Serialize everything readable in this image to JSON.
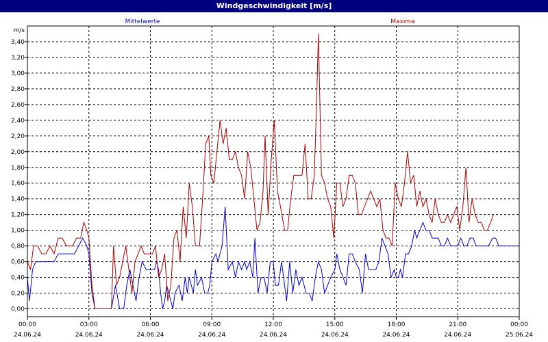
{
  "window": {
    "title": "Windgeschwindigkeit [m/s]"
  },
  "chart_data": {
    "type": "line",
    "title": "Windgeschwindigkeit [m/s]",
    "ylabel": "m/s",
    "ylim": [
      -0.1,
      3.6
    ],
    "grid": true,
    "legend_placement": "top",
    "y_ticks": [
      "0,00",
      "0,20",
      "0,40",
      "0,60",
      "0,80",
      "1,00",
      "1,20",
      "1,40",
      "1,60",
      "1,80",
      "2,00",
      "2,20",
      "2,40",
      "2,60",
      "2,80",
      "3,00",
      "3,20",
      "3,40"
    ],
    "x_ticks": [
      {
        "time": "00:00",
        "date": "24.06.24"
      },
      {
        "time": "03:00",
        "date": "24.06.24"
      },
      {
        "time": "06:00",
        "date": "24.06.24"
      },
      {
        "time": "09:00",
        "date": "24.06.24"
      },
      {
        "time": "12:00",
        "date": "24.06.24"
      },
      {
        "time": "15:00",
        "date": "24.06.24"
      },
      {
        "time": "18:00",
        "date": "24.06.24"
      },
      {
        "time": "21:00",
        "date": "24.06.24"
      },
      {
        "time": "00:00",
        "date": "25.06.24"
      }
    ],
    "series": [
      {
        "name": "Mittelwerte",
        "color": "#0000cc",
        "points": [
          [
            0.0,
            0.4
          ],
          [
            0.1,
            0.1
          ],
          [
            0.25,
            0.5
          ],
          [
            0.4,
            0.6
          ],
          [
            0.7,
            0.6
          ],
          [
            1.0,
            0.6
          ],
          [
            1.3,
            0.6
          ],
          [
            1.5,
            0.7
          ],
          [
            1.8,
            0.7
          ],
          [
            2.1,
            0.7
          ],
          [
            2.3,
            0.7
          ],
          [
            2.5,
            0.8
          ],
          [
            2.7,
            0.9
          ],
          [
            2.9,
            0.8
          ],
          [
            3.0,
            0.7
          ],
          [
            3.15,
            0.2
          ],
          [
            3.3,
            0.0
          ],
          [
            3.6,
            0.0
          ],
          [
            3.9,
            0.0
          ],
          [
            4.1,
            0.0
          ],
          [
            4.3,
            0.3
          ],
          [
            4.5,
            0.0
          ],
          [
            4.7,
            0.0
          ],
          [
            4.85,
            0.3
          ],
          [
            5.0,
            0.5
          ],
          [
            5.15,
            0.3
          ],
          [
            5.3,
            0.1
          ],
          [
            5.45,
            0.4
          ],
          [
            5.6,
            0.6
          ],
          [
            5.8,
            0.5
          ],
          [
            6.0,
            0.5
          ],
          [
            6.2,
            0.5
          ],
          [
            6.3,
            0.6
          ],
          [
            6.4,
            0.5
          ],
          [
            6.5,
            0.2
          ],
          [
            6.6,
            0.0
          ],
          [
            6.7,
            0.1
          ],
          [
            6.8,
            0.3
          ],
          [
            6.9,
            0.2
          ],
          [
            7.0,
            0.1
          ],
          [
            7.1,
            0.0
          ],
          [
            7.2,
            0.2
          ],
          [
            7.4,
            0.3
          ],
          [
            7.55,
            0.1
          ],
          [
            7.7,
            0.4
          ],
          [
            7.8,
            0.2
          ],
          [
            7.9,
            0.4
          ],
          [
            8.1,
            0.2
          ],
          [
            8.2,
            0.5
          ],
          [
            8.3,
            0.3
          ],
          [
            8.5,
            0.4
          ],
          [
            8.65,
            0.2
          ],
          [
            8.8,
            0.2
          ],
          [
            8.9,
            0.3
          ],
          [
            9.0,
            0.6
          ],
          [
            9.2,
            0.7
          ],
          [
            9.3,
            0.6
          ],
          [
            9.5,
            0.8
          ],
          [
            9.65,
            1.3
          ],
          [
            9.8,
            0.5
          ],
          [
            10.0,
            0.6
          ],
          [
            10.15,
            0.4
          ],
          [
            10.3,
            0.6
          ],
          [
            10.45,
            0.5
          ],
          [
            10.6,
            0.6
          ],
          [
            10.7,
            0.5
          ],
          [
            10.85,
            0.6
          ],
          [
            11.0,
            0.4
          ],
          [
            11.1,
            0.9
          ],
          [
            11.25,
            0.2
          ],
          [
            11.4,
            0.4
          ],
          [
            11.55,
            0.4
          ],
          [
            11.7,
            0.2
          ],
          [
            11.85,
            0.6
          ],
          [
            12.0,
            0.6
          ],
          [
            12.1,
            0.3
          ],
          [
            12.25,
            0.3
          ],
          [
            12.4,
            0.6
          ],
          [
            12.5,
            0.4
          ],
          [
            12.65,
            0.1
          ],
          [
            12.8,
            0.6
          ],
          [
            12.95,
            0.2
          ],
          [
            13.1,
            0.5
          ],
          [
            13.25,
            0.3
          ],
          [
            13.4,
            0.4
          ],
          [
            13.6,
            0.2
          ],
          [
            13.75,
            0.2
          ],
          [
            13.9,
            0.1
          ],
          [
            14.05,
            0.4
          ],
          [
            14.2,
            0.6
          ],
          [
            14.35,
            0.5
          ],
          [
            14.5,
            0.2
          ],
          [
            14.65,
            0.3
          ],
          [
            14.8,
            0.4
          ],
          [
            15.0,
            0.5
          ],
          [
            15.1,
            0.7
          ],
          [
            15.25,
            0.5
          ],
          [
            15.4,
            0.4
          ],
          [
            15.55,
            0.3
          ],
          [
            15.7,
            0.7
          ],
          [
            15.85,
            0.7
          ],
          [
            16.0,
            0.6
          ],
          [
            16.2,
            0.5
          ],
          [
            16.35,
            0.2
          ],
          [
            16.5,
            0.7
          ],
          [
            16.65,
            0.5
          ],
          [
            16.8,
            0.5
          ],
          [
            17.0,
            0.5
          ],
          [
            17.15,
            0.6
          ],
          [
            17.3,
            0.9
          ],
          [
            17.45,
            0.8
          ],
          [
            17.6,
            0.7
          ],
          [
            17.75,
            0.4
          ],
          [
            17.9,
            0.5
          ],
          [
            18.0,
            0.4
          ],
          [
            18.1,
            0.4
          ],
          [
            18.2,
            0.5
          ],
          [
            18.3,
            0.4
          ],
          [
            18.45,
            0.7
          ],
          [
            18.6,
            0.7
          ],
          [
            18.75,
            0.8
          ],
          [
            18.9,
            1.0
          ],
          [
            19.0,
            0.9
          ],
          [
            19.15,
            1.0
          ],
          [
            19.3,
            1.1
          ],
          [
            19.45,
            1.0
          ],
          [
            19.6,
            1.0
          ],
          [
            19.75,
            0.9
          ],
          [
            19.9,
            0.9
          ],
          [
            20.05,
            0.9
          ],
          [
            20.2,
            0.8
          ],
          [
            20.35,
            0.8
          ],
          [
            20.5,
            0.9
          ],
          [
            20.65,
            0.8
          ],
          [
            20.8,
            0.8
          ],
          [
            21.0,
            0.8
          ],
          [
            21.15,
            0.9
          ],
          [
            21.3,
            0.8
          ],
          [
            21.45,
            0.8
          ],
          [
            21.6,
            0.9
          ],
          [
            21.75,
            0.9
          ],
          [
            21.9,
            0.8
          ],
          [
            22.05,
            0.8
          ],
          [
            22.3,
            0.8
          ],
          [
            22.5,
            0.8
          ],
          [
            22.7,
            0.9
          ],
          [
            22.85,
            0.9
          ],
          [
            23.0,
            0.8
          ],
          [
            23.3,
            0.8
          ],
          [
            23.6,
            0.8
          ],
          [
            24.0,
            0.8
          ]
        ]
      },
      {
        "name": "Maxima",
        "color": "#aa0000",
        "points": [
          [
            0.0,
            0.6
          ],
          [
            0.15,
            0.5
          ],
          [
            0.3,
            0.8
          ],
          [
            0.5,
            0.8
          ],
          [
            0.7,
            0.7
          ],
          [
            0.9,
            0.7
          ],
          [
            1.1,
            0.8
          ],
          [
            1.3,
            0.7
          ],
          [
            1.5,
            0.9
          ],
          [
            1.7,
            0.9
          ],
          [
            1.9,
            0.8
          ],
          [
            2.2,
            0.8
          ],
          [
            2.4,
            0.9
          ],
          [
            2.6,
            0.9
          ],
          [
            2.75,
            1.1
          ],
          [
            2.9,
            1.0
          ],
          [
            3.0,
            0.9
          ],
          [
            3.15,
            0.3
          ],
          [
            3.3,
            0.0
          ],
          [
            3.6,
            0.0
          ],
          [
            3.9,
            0.0
          ],
          [
            4.1,
            0.0
          ],
          [
            4.2,
            0.8
          ],
          [
            4.35,
            0.3
          ],
          [
            4.5,
            0.4
          ],
          [
            4.65,
            0.6
          ],
          [
            4.8,
            0.8
          ],
          [
            4.95,
            0.5
          ],
          [
            5.1,
            0.2
          ],
          [
            5.25,
            0.6
          ],
          [
            5.4,
            0.7
          ],
          [
            5.55,
            0.8
          ],
          [
            5.7,
            0.7
          ],
          [
            5.9,
            0.7
          ],
          [
            6.1,
            0.7
          ],
          [
            6.25,
            0.8
          ],
          [
            6.4,
            0.4
          ],
          [
            6.55,
            0.5
          ],
          [
            6.7,
            0.7
          ],
          [
            6.85,
            0.1
          ],
          [
            7.0,
            0.3
          ],
          [
            7.15,
            0.9
          ],
          [
            7.3,
            1.0
          ],
          [
            7.45,
            0.6
          ],
          [
            7.6,
            1.3
          ],
          [
            7.75,
            0.9
          ],
          [
            7.9,
            1.6
          ],
          [
            8.05,
            1.3
          ],
          [
            8.2,
            0.8
          ],
          [
            8.4,
            0.8
          ],
          [
            8.55,
            1.4
          ],
          [
            8.7,
            2.1
          ],
          [
            8.85,
            2.2
          ],
          [
            8.95,
            1.7
          ],
          [
            9.1,
            1.6
          ],
          [
            9.25,
            2.0
          ],
          [
            9.4,
            2.4
          ],
          [
            9.55,
            2.1
          ],
          [
            9.7,
            2.3
          ],
          [
            9.85,
            1.9
          ],
          [
            10.0,
            1.9
          ],
          [
            10.15,
            2.0
          ],
          [
            10.3,
            1.8
          ],
          [
            10.45,
            1.7
          ],
          [
            10.6,
            1.4
          ],
          [
            10.75,
            2.0
          ],
          [
            10.9,
            1.8
          ],
          [
            11.05,
            1.4
          ],
          [
            11.2,
            1.0
          ],
          [
            11.35,
            1.1
          ],
          [
            11.5,
            1.5
          ],
          [
            11.6,
            2.2
          ],
          [
            11.75,
            1.2
          ],
          [
            11.9,
            1.9
          ],
          [
            12.05,
            2.4
          ],
          [
            12.2,
            1.5
          ],
          [
            12.35,
            1.3
          ],
          [
            12.55,
            1.0
          ],
          [
            12.7,
            1.0
          ],
          [
            12.85,
            1.4
          ],
          [
            13.0,
            1.7
          ],
          [
            13.2,
            1.7
          ],
          [
            13.4,
            1.7
          ],
          [
            13.55,
            2.1
          ],
          [
            13.7,
            1.4
          ],
          [
            13.85,
            1.4
          ],
          [
            14.0,
            1.7
          ],
          [
            14.1,
            2.5
          ],
          [
            14.2,
            3.5
          ],
          [
            14.35,
            1.7
          ],
          [
            14.5,
            1.6
          ],
          [
            14.65,
            1.4
          ],
          [
            14.8,
            1.3
          ],
          [
            14.95,
            0.9
          ],
          [
            15.1,
            1.6
          ],
          [
            15.25,
            1.6
          ],
          [
            15.4,
            1.3
          ],
          [
            15.55,
            1.4
          ],
          [
            15.7,
            1.7
          ],
          [
            15.85,
            1.7
          ],
          [
            16.0,
            1.6
          ],
          [
            16.15,
            1.2
          ],
          [
            16.3,
            1.2
          ],
          [
            16.45,
            1.3
          ],
          [
            16.6,
            1.4
          ],
          [
            16.75,
            1.5
          ],
          [
            16.9,
            1.4
          ],
          [
            17.05,
            1.3
          ],
          [
            17.2,
            1.4
          ],
          [
            17.35,
            1.0
          ],
          [
            17.5,
            0.9
          ],
          [
            17.65,
            0.9
          ],
          [
            17.8,
            0.8
          ],
          [
            17.95,
            1.6
          ],
          [
            18.1,
            1.4
          ],
          [
            18.25,
            1.3
          ],
          [
            18.4,
            1.6
          ],
          [
            18.55,
            2.0
          ],
          [
            18.7,
            1.6
          ],
          [
            18.85,
            1.7
          ],
          [
            19.0,
            1.3
          ],
          [
            19.15,
            1.5
          ],
          [
            19.3,
            1.3
          ],
          [
            19.45,
            1.4
          ],
          [
            19.6,
            1.2
          ],
          [
            19.75,
            1.1
          ],
          [
            19.9,
            1.4
          ],
          [
            20.05,
            1.2
          ],
          [
            20.2,
            1.1
          ],
          [
            20.35,
            1.1
          ],
          [
            20.5,
            1.2
          ],
          [
            20.65,
            1.1
          ],
          [
            20.8,
            1.2
          ],
          [
            20.95,
            1.3
          ],
          [
            21.1,
            1.0
          ],
          [
            21.25,
            1.3
          ],
          [
            21.4,
            1.8
          ],
          [
            21.55,
            1.1
          ],
          [
            21.7,
            1.4
          ],
          [
            21.85,
            1.2
          ],
          [
            22.0,
            1.1
          ],
          [
            22.15,
            1.1
          ],
          [
            22.3,
            1.0
          ],
          [
            22.45,
            1.0
          ],
          [
            22.6,
            1.1
          ],
          [
            22.75,
            1.2
          ]
        ]
      }
    ]
  }
}
